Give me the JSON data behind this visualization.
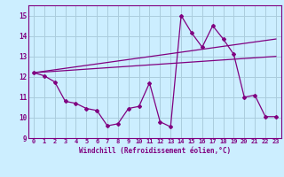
{
  "background_color": "#cceeff",
  "grid_color": "#aaccdd",
  "line_color": "#800080",
  "xlabel": "Windchill (Refroidissement éolien,°C)",
  "ylabel_ticks": [
    9,
    10,
    11,
    12,
    13,
    14,
    15
  ],
  "xlim": [
    -0.5,
    23.5
  ],
  "ylim": [
    9.0,
    15.5
  ],
  "xticks": [
    0,
    1,
    2,
    3,
    4,
    5,
    6,
    7,
    8,
    9,
    10,
    11,
    12,
    13,
    14,
    15,
    16,
    17,
    18,
    19,
    20,
    21,
    22,
    23
  ],
  "series1_x": [
    0,
    1,
    2,
    3,
    4,
    5,
    6,
    7,
    8,
    9,
    10,
    11,
    12,
    13,
    14,
    15,
    16,
    17,
    18,
    19,
    20,
    21,
    22,
    23
  ],
  "series1_y": [
    12.2,
    12.05,
    11.75,
    10.8,
    10.7,
    10.45,
    10.35,
    9.6,
    9.7,
    10.45,
    10.55,
    11.7,
    9.8,
    9.55,
    15.0,
    14.15,
    13.45,
    14.5,
    13.85,
    13.1,
    11.0,
    11.1,
    10.05,
    10.05
  ],
  "series2_x": [
    0,
    23
  ],
  "series2_y": [
    12.2,
    13.85
  ],
  "series3_x": [
    0,
    23
  ],
  "series3_y": [
    12.2,
    13.0
  ]
}
